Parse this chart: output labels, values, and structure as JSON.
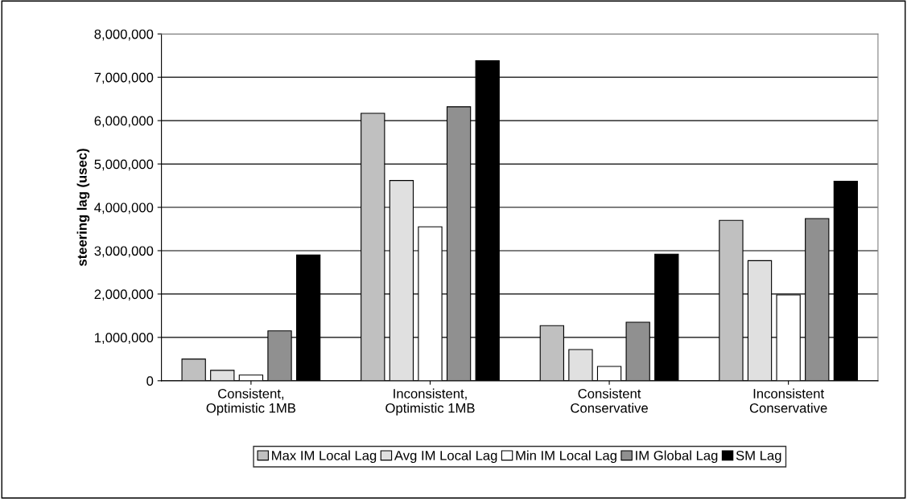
{
  "chart_data": {
    "type": "bar",
    "ylabel": "steering lag (usec)",
    "categories": [
      "Consistent,\nOptimistic 1MB",
      "Inconsistent,\nOptimistic 1MB",
      "Consistent\nConservative",
      "Inconsistent\nConservative"
    ],
    "series": [
      {
        "name": "Max IM Local Lag",
        "color": "#c0c0c0",
        "values": [
          500000,
          6170000,
          1270000,
          3700000
        ]
      },
      {
        "name": "Avg IM Local Lag",
        "color": "#e0e0e0",
        "values": [
          240000,
          4620000,
          720000,
          2770000
        ]
      },
      {
        "name": "Min IM Local Lag",
        "color": "#ffffff",
        "values": [
          130000,
          3550000,
          330000,
          1980000
        ]
      },
      {
        "name": "IM Global Lag",
        "color": "#909090",
        "values": [
          1150000,
          6320000,
          1350000,
          3740000
        ]
      },
      {
        "name": "SM Lag",
        "color": "#000000",
        "values": [
          2900000,
          7380000,
          2920000,
          4600000
        ]
      }
    ],
    "ylim": [
      0,
      8000000
    ],
    "yticks": [
      0,
      {
        "value": 1000000,
        "label": "1,000,000"
      },
      {
        "value": 2000000,
        "label": "2,000,000"
      },
      {
        "value": 3000000,
        "label": "3,000,000"
      },
      {
        "value": 4000000,
        "label": "4,000,000"
      },
      {
        "value": 5000000,
        "label": "5,000,000"
      },
      {
        "value": 6000000,
        "label": "6,000,000"
      },
      {
        "value": 7000000,
        "label": "7,000,000"
      },
      {
        "value": 8000000,
        "label": "8,000,000"
      }
    ],
    "grid": "y",
    "legend": "bottom"
  }
}
